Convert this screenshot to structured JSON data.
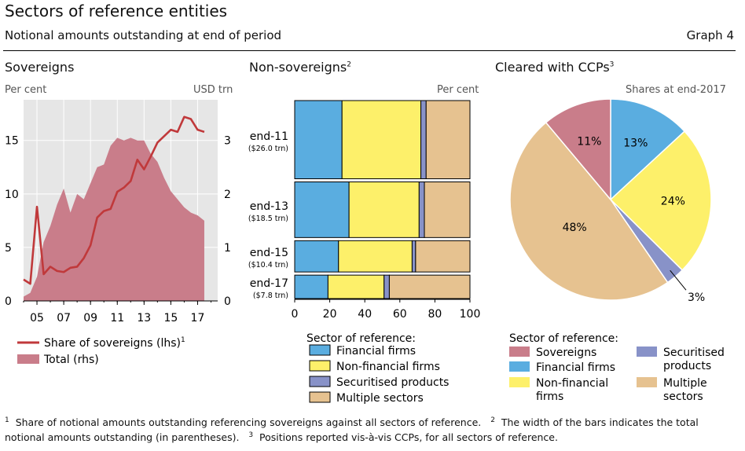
{
  "header": {
    "title": "Sectors of reference entities",
    "subtitle": "Notional amounts outstanding at end of period",
    "graph_number": "Graph 4"
  },
  "panels": {
    "sovereigns": {
      "title": "Sovereigns",
      "left_unit": "Per cent",
      "right_unit": "USD trn"
    },
    "nonsovereigns": {
      "title": "Non-sovereigns",
      "title_note": "2",
      "unit": "Per cent"
    },
    "ccp": {
      "title": "Cleared with CCPs",
      "title_note": "3",
      "unit": "Shares at end-2017"
    }
  },
  "legends": {
    "sovereigns": [
      {
        "label": "Share of sovereigns (lhs)",
        "note": "1",
        "color": "#c0393b",
        "kind": "line"
      },
      {
        "label": "Total (rhs)",
        "color": "#c97d8a",
        "kind": "area"
      }
    ],
    "nonsovereigns": {
      "heading": "Sector of reference:",
      "items": [
        {
          "label": "Financial firms",
          "color": "#5aade0"
        },
        {
          "label": "Non-financial firms",
          "color": "#fdf06a"
        },
        {
          "label": "Securitised products",
          "color": "#8892c8"
        },
        {
          "label": "Multiple sectors",
          "color": "#e6c290"
        }
      ]
    },
    "ccp": {
      "heading": "Sector of reference:",
      "items": [
        {
          "label": "Sovereigns",
          "color": "#c97d8a"
        },
        {
          "label": "Financial firms",
          "color": "#5aade0"
        },
        {
          "label": "Non-financial",
          "label2": "firms",
          "color": "#fdf06a"
        },
        {
          "label": "Securitised",
          "label2": "products",
          "color": "#8892c8"
        },
        {
          "label": "Multiple",
          "label2": "sectors",
          "color": "#e6c290"
        }
      ]
    }
  },
  "footnotes": {
    "n1_mark": "1",
    "n1": "Share of notional amounts outstanding referencing sovereigns against all sectors of reference.",
    "n2_mark": "2",
    "n2a": "The width of the bars indicates the total",
    "n2b": "notional amounts outstanding (in parentheses).",
    "n3_mark": "3",
    "n3": "Positions reported vis-à-vis CCPs, for all sectors of reference."
  },
  "chart_data": [
    {
      "type": "line",
      "x_tick_labels": [
        "05",
        "07",
        "09",
        "11",
        "13",
        "15",
        "17"
      ],
      "x_tick_values": [
        2005,
        2007,
        2009,
        2011,
        2013,
        2015,
        2017
      ],
      "xlim": [
        2004,
        2018.5
      ],
      "left_ticks": [
        "0",
        "5",
        "10",
        "15"
      ],
      "right_ticks": [
        "0",
        "1",
        "2",
        "3"
      ],
      "ylim_left": [
        0,
        18.8
      ],
      "ylim_right": [
        0,
        3.76
      ],
      "series": [
        {
          "name": "Share of sovereigns (lhs)",
          "axis": "left",
          "color": "#c0393b",
          "x": [
            2004.0,
            2004.5,
            2005.0,
            2005.5,
            2006.0,
            2006.5,
            2007.0,
            2007.5,
            2008.0,
            2008.5,
            2009.0,
            2009.5,
            2010.0,
            2010.5,
            2011.0,
            2011.5,
            2012.0,
            2012.5,
            2013.0,
            2013.5,
            2014.0,
            2014.5,
            2015.0,
            2015.5,
            2016.0,
            2016.5,
            2017.0,
            2017.5
          ],
          "y": [
            2.0,
            1.6,
            8.8,
            2.5,
            3.2,
            2.8,
            2.7,
            3.1,
            3.2,
            4.0,
            5.2,
            7.8,
            8.4,
            8.6,
            10.2,
            10.6,
            11.2,
            13.2,
            12.3,
            13.5,
            14.8,
            15.4,
            16.0,
            15.8,
            17.2,
            17.0,
            16.0,
            15.8
          ]
        },
        {
          "name": "Total (rhs)",
          "axis": "right",
          "color": "#c97d8a",
          "type": "area",
          "x": [
            2004.0,
            2004.5,
            2005.0,
            2005.5,
            2006.0,
            2006.5,
            2007.0,
            2007.5,
            2008.0,
            2008.5,
            2009.0,
            2009.5,
            2010.0,
            2010.5,
            2011.0,
            2011.5,
            2012.0,
            2012.5,
            2013.0,
            2013.5,
            2014.0,
            2014.5,
            2015.0,
            2015.5,
            2016.0,
            2016.5,
            2017.0,
            2017.5
          ],
          "y": [
            0.08,
            0.15,
            0.45,
            1.1,
            1.4,
            1.8,
            2.1,
            1.65,
            2.0,
            1.9,
            2.2,
            2.5,
            2.55,
            2.9,
            3.05,
            3.0,
            3.05,
            3.0,
            3.0,
            2.75,
            2.6,
            2.3,
            2.05,
            1.9,
            1.75,
            1.65,
            1.6,
            1.5
          ]
        }
      ]
    },
    {
      "type": "bar",
      "orientation": "horizontal",
      "stacked": true,
      "categories": [
        "end-11",
        "end-13",
        "end-15",
        "end-17"
      ],
      "category_notes": [
        "($26.0 trn)",
        "($18.5 trn)",
        "($10.4 trn)",
        "($7.8 trn)"
      ],
      "totals_usd_trn": [
        26.0,
        18.5,
        10.4,
        7.8
      ],
      "x_ticks": [
        "0",
        "20",
        "40",
        "60",
        "80",
        "100"
      ],
      "xlim": [
        0,
        100
      ],
      "series": [
        {
          "name": "Financial firms",
          "color": "#5aade0",
          "values": [
            27,
            31,
            25,
            19
          ]
        },
        {
          "name": "Non-financial firms",
          "color": "#fdf06a",
          "values": [
            45,
            40,
            42,
            32
          ]
        },
        {
          "name": "Securitised products",
          "color": "#8892c8",
          "values": [
            3,
            3,
            2,
            3
          ]
        },
        {
          "name": "Multiple sectors",
          "color": "#e6c290",
          "values": [
            25,
            26,
            31,
            46
          ]
        }
      ]
    },
    {
      "type": "pie",
      "start": "top",
      "direction": "clockwise",
      "slices": [
        {
          "name": "Financial firms",
          "value": 13,
          "label": "13%",
          "color": "#5aade0"
        },
        {
          "name": "Non-financial firms",
          "value": 24,
          "label": "24%",
          "color": "#fdf06a"
        },
        {
          "name": "Securitised products",
          "value": 3,
          "label": "3%",
          "color": "#8892c8",
          "label_outside": true
        },
        {
          "name": "Multiple sectors",
          "value": 48,
          "label": "48%",
          "color": "#e6c290"
        },
        {
          "name": "Sovereigns",
          "value": 11,
          "label": "11%",
          "color": "#c97d8a"
        }
      ]
    }
  ]
}
